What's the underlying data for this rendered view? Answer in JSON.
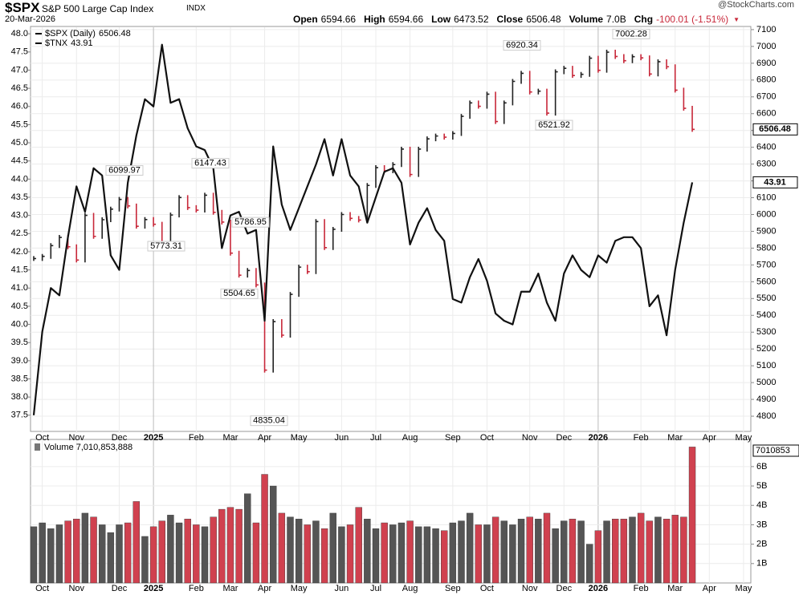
{
  "header": {
    "symbol": "$SPX",
    "name": "S&P 500 Large Cap Index",
    "exchange": "INDX",
    "date": "20-Mar-2026",
    "credit": "@StockCharts.com",
    "quote": [
      {
        "label": "Open",
        "value": "6594.66"
      },
      {
        "label": "High",
        "value": "6594.66"
      },
      {
        "label": "Low",
        "value": "6473.52"
      },
      {
        "label": "Close",
        "value": "6506.48"
      },
      {
        "label": "Volume",
        "value": "7.0B"
      },
      {
        "label": "Chg",
        "value": "-100.01 (-1.51%)"
      }
    ]
  },
  "chart_data": [
    {
      "type": "stock",
      "categories": [
        null,
        "Oct",
        null,
        null,
        null,
        "Nov",
        null,
        null,
        null,
        null,
        "Dec",
        null,
        null,
        null,
        "2025",
        null,
        null,
        null,
        null,
        "Feb",
        null,
        null,
        null,
        "Mar",
        null,
        null,
        null,
        "Apr",
        null,
        null,
        null,
        "May",
        null,
        null,
        null,
        null,
        "Jun",
        null,
        null,
        null,
        "Jul",
        null,
        null,
        null,
        "Aug",
        null,
        null,
        null,
        null,
        "Sep",
        null,
        null,
        null,
        "Oct",
        null,
        null,
        null,
        null,
        "Nov",
        null,
        null,
        null,
        "Dec",
        null,
        null,
        null,
        "2026",
        null,
        null,
        null,
        null,
        "Feb",
        null,
        null,
        null,
        "Mar",
        null,
        null,
        null,
        "Apr",
        null,
        null,
        null,
        "May"
      ],
      "series": [
        {
          "name": "$SPX (Daily)",
          "axis": "y2",
          "up_color": "#222222",
          "down_color": "#c8283a",
          "values": [
            5738,
            5751,
            5815,
            5864,
            5808,
            5729,
            5995,
            5870,
            5969,
            6032,
            6090,
            6051,
            5930,
            5970,
            5942,
            5827,
            5997,
            6101,
            6041,
            6026,
            6115,
            6013,
            5955,
            5770,
            5639,
            5667,
            5581,
            5074,
            5363,
            5282,
            5525,
            5687,
            5660,
            5958,
            5803,
            5912,
            6000,
            5977,
            5967,
            6173,
            6279,
            6260,
            6297,
            6389,
            6238,
            6389,
            6450,
            6467,
            6460,
            6482,
            6584,
            6664,
            6644,
            6716,
            6553,
            6664,
            6792,
            6840,
            6729,
            6734,
            6603,
            6849,
            6870,
            6827,
            6834,
            6930,
            6858,
            6966,
            6940,
            6915,
            6939,
            6932,
            6836,
            6909,
            6879,
            6740,
            6632,
            6506.48,
            null,
            null,
            null,
            null,
            null,
            null
          ]
        },
        {
          "name": "$TNX",
          "color": "#111111",
          "values": [
            37.5,
            39.8,
            41.0,
            40.8,
            42.4,
            43.8,
            43.1,
            44.3,
            44.1,
            41.9,
            41.5,
            43.9,
            45.2,
            46.2,
            46.0,
            47.7,
            46.1,
            46.2,
            45.4,
            44.9,
            44.8,
            44.3,
            42.1,
            43.0,
            43.1,
            42.5,
            42.6,
            40.1,
            44.9,
            43.3,
            42.6,
            43.2,
            43.8,
            44.4,
            45.1,
            44.1,
            45.1,
            44.1,
            43.8,
            42.8,
            43.5,
            44.2,
            44.3,
            43.9,
            42.2,
            42.8,
            43.2,
            42.6,
            42.3,
            40.7,
            40.6,
            41.3,
            41.8,
            41.2,
            40.3,
            40.1,
            40.0,
            40.9,
            40.9,
            41.4,
            40.6,
            40.1,
            41.4,
            41.9,
            41.5,
            41.3,
            41.9,
            41.7,
            42.3,
            42.4,
            42.4,
            42.1,
            40.5,
            40.8,
            39.7,
            41.5,
            42.8,
            43.91,
            null,
            null,
            null,
            null,
            null,
            null
          ]
        }
      ],
      "annotations": [
        6099.97,
        6147.43,
        5773.31,
        5786.95,
        5504.65,
        4835.04,
        6920.34,
        6521.92,
        7002.28
      ],
      "ylim": [
        37.01,
        48.18
      ],
      "yticks": [
        37.5,
        {
          "value": 38,
          "label": "38.0"
        },
        38.5,
        {
          "value": 39,
          "label": "39.0"
        },
        39.5,
        {
          "value": 40,
          "label": "40.0"
        },
        40.5,
        {
          "value": 41,
          "label": "41.0"
        },
        41.5,
        {
          "value": 42,
          "label": "42.0"
        },
        42.5,
        {
          "value": 43,
          "label": "43.0"
        },
        43.5,
        {
          "value": 44,
          "label": "44.0"
        },
        44.5,
        {
          "value": 45,
          "label": "45.0"
        },
        45.5,
        {
          "value": 46,
          "label": "46.0"
        },
        46.5,
        {
          "value": 47,
          "label": "47.0"
        },
        47.5,
        {
          "value": 48,
          "label": "48.0"
        }
      ],
      "y2lim": [
        4700,
        7114
      ],
      "y2ticks": [
        4800,
        4900,
        5000,
        5100,
        5200,
        5300,
        5400,
        5500,
        5600,
        5700,
        5800,
        5900,
        6000,
        6100,
        6200,
        6300,
        6400,
        6500,
        6600,
        6700,
        6800,
        6900,
        7000,
        7100
      ],
      "grid": true
    },
    {
      "type": "bar",
      "title": "Volume 7,010,853,888",
      "current_label": "7010853",
      "up_color": "#555555",
      "down_color": "#d0414f",
      "values": [
        2900000000,
        3100000000,
        2800000000,
        3000000000,
        3200000000,
        3300000000,
        3600000000,
        3400000000,
        3000000000,
        2600000000,
        3000000000,
        3100000000,
        4200000000,
        2400000000,
        2900000000,
        3200000000,
        3500000000,
        3100000000,
        3300000000,
        3000000000,
        2900000000,
        3400000000,
        3800000000,
        3900000000,
        3800000000,
        4600000000,
        3100000000,
        5600000000,
        5000000000,
        3600000000,
        3400000000,
        3300000000,
        3000000000,
        3200000000,
        2800000000,
        3600000000,
        2900000000,
        3000000000,
        3900000000,
        3300000000,
        2800000000,
        3100000000,
        3000000000,
        3100000000,
        3200000000,
        2900000000,
        2900000000,
        2800000000,
        2700000000,
        3100000000,
        3200000000,
        3600000000,
        3000000000,
        3000000000,
        3400000000,
        3200000000,
        3000000000,
        3300000000,
        3400000000,
        3300000000,
        3600000000,
        2800000000,
        3200000000,
        3300000000,
        3200000000,
        2000000000,
        2700000000,
        3200000000,
        3300000000,
        3300000000,
        3400000000,
        3600000000,
        3200000000,
        3400000000,
        3300000000,
        3500000000,
        3400000000,
        7010853888,
        null,
        null,
        null,
        null,
        null,
        null
      ],
      "ylim": [
        0,
        7400000000
      ],
      "yticks": [
        {
          "value": 1000000000,
          "label": "1B"
        },
        {
          "value": 2000000000,
          "label": "2B"
        },
        {
          "value": 3000000000,
          "label": "3B"
        },
        {
          "value": 4000000000,
          "label": "4B"
        },
        {
          "value": 5000000000,
          "label": "5B"
        },
        {
          "value": 6000000000,
          "label": "6B"
        }
      ]
    }
  ]
}
